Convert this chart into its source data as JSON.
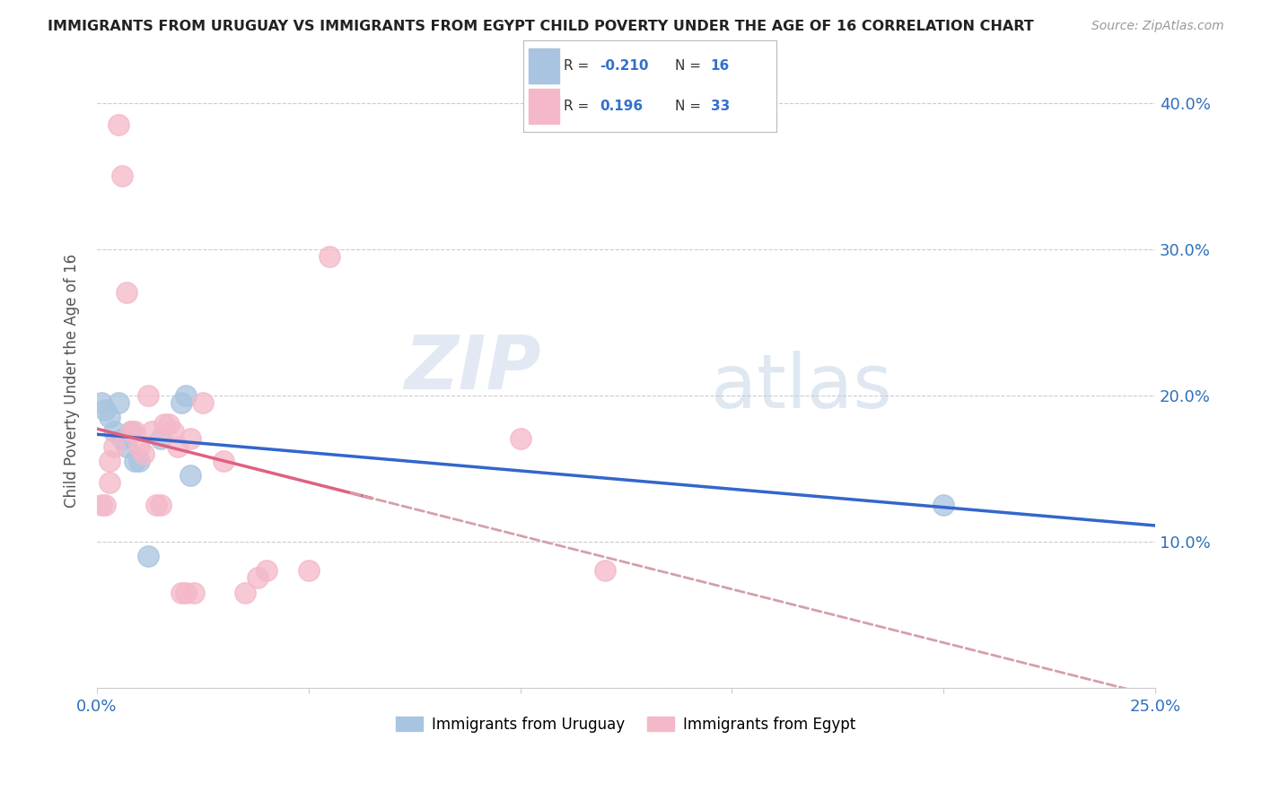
{
  "title": "IMMIGRANTS FROM URUGUAY VS IMMIGRANTS FROM EGYPT CHILD POVERTY UNDER THE AGE OF 16 CORRELATION CHART",
  "source": "Source: ZipAtlas.com",
  "ylabel": "Child Poverty Under the Age of 16",
  "xlim": [
    0.0,
    0.25
  ],
  "ylim": [
    0.0,
    0.42
  ],
  "uruguay_color": "#a8c4e0",
  "egypt_color": "#f4b8c8",
  "trend_uruguay_color": "#3366cc",
  "trend_egypt_solid_color": "#e06080",
  "trend_egypt_dashed_color": "#d4a0a8",
  "watermark_zip": "ZIP",
  "watermark_atlas": "atlas",
  "uruguay_x": [
    0.001,
    0.002,
    0.003,
    0.004,
    0.005,
    0.006,
    0.007,
    0.008,
    0.009,
    0.01,
    0.012,
    0.015,
    0.02,
    0.021,
    0.022,
    0.2
  ],
  "uruguay_y": [
    0.195,
    0.19,
    0.185,
    0.175,
    0.195,
    0.17,
    0.165,
    0.175,
    0.155,
    0.155,
    0.09,
    0.17,
    0.195,
    0.2,
    0.145,
    0.125
  ],
  "egypt_x": [
    0.001,
    0.002,
    0.003,
    0.003,
    0.004,
    0.005,
    0.006,
    0.007,
    0.008,
    0.009,
    0.01,
    0.011,
    0.012,
    0.013,
    0.014,
    0.015,
    0.016,
    0.017,
    0.018,
    0.019,
    0.02,
    0.021,
    0.022,
    0.023,
    0.025,
    0.03,
    0.035,
    0.038,
    0.04,
    0.05,
    0.055,
    0.1,
    0.12
  ],
  "egypt_y": [
    0.125,
    0.125,
    0.14,
    0.155,
    0.165,
    0.385,
    0.35,
    0.27,
    0.175,
    0.175,
    0.165,
    0.16,
    0.2,
    0.175,
    0.125,
    0.125,
    0.18,
    0.18,
    0.175,
    0.165,
    0.065,
    0.065,
    0.17,
    0.065,
    0.195,
    0.155,
    0.065,
    0.075,
    0.08,
    0.08,
    0.295,
    0.17,
    0.08
  ],
  "trend_egypt_solid_end": 0.065,
  "trend_egypt_dashed_start": 0.06,
  "legend_items": [
    {
      "color": "#a8c4e0",
      "r_label": "R = ",
      "r_val": "-0.210",
      "n_label": "N = ",
      "n_val": "16"
    },
    {
      "color": "#f4b8c8",
      "r_label": "R =  ",
      "r_val": "0.196",
      "n_label": "N = ",
      "n_val": "33"
    }
  ],
  "bottom_legend": [
    "Immigrants from Uruguay",
    "Immigrants from Egypt"
  ]
}
